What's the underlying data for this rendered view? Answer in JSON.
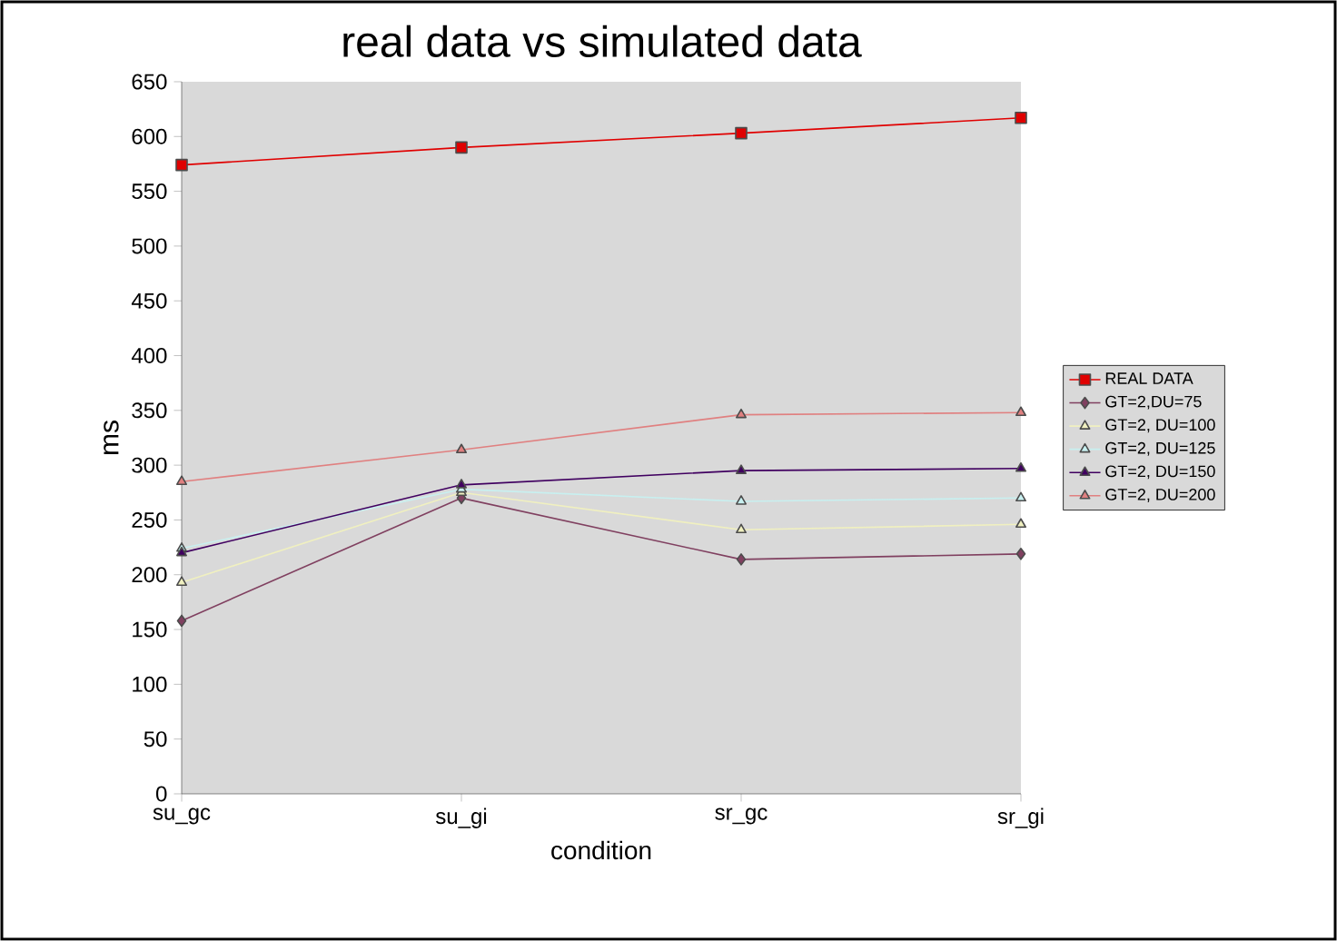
{
  "chart_data": {
    "type": "line",
    "title": "real data vs simulated data",
    "xlabel": "condition",
    "ylabel": "ms",
    "categories": [
      "su_gc",
      "su_gi",
      "sr_gc",
      "sr_gi"
    ],
    "series": [
      {
        "name": "REAL DATA",
        "color": "#e00000",
        "marker": "square",
        "values": [
          574,
          590,
          603,
          617
        ]
      },
      {
        "name": "GT=2,DU=75",
        "color": "#804060",
        "marker": "diamond",
        "values": [
          158,
          270,
          214,
          219
        ]
      },
      {
        "name": "GT=2, DU=100",
        "color": "#f0f0c0",
        "marker": "triangle",
        "values": [
          193,
          275,
          241,
          246
        ]
      },
      {
        "name": "GT=2, DU=125",
        "color": "#c8f0f0",
        "marker": "triangle",
        "values": [
          224,
          278,
          267,
          270
        ]
      },
      {
        "name": "GT=2, DU=150",
        "color": "#400060",
        "marker": "triangle",
        "values": [
          220,
          282,
          295,
          297
        ]
      },
      {
        "name": "GT=2, DU=200",
        "color": "#e08080",
        "marker": "triangle",
        "values": [
          285,
          314,
          346,
          348
        ]
      }
    ],
    "ylim": [
      0,
      650
    ],
    "yticks": [
      0,
      50,
      100,
      150,
      200,
      250,
      300,
      350,
      400,
      450,
      500,
      550,
      600,
      650
    ],
    "grid": false,
    "legend": "right"
  }
}
